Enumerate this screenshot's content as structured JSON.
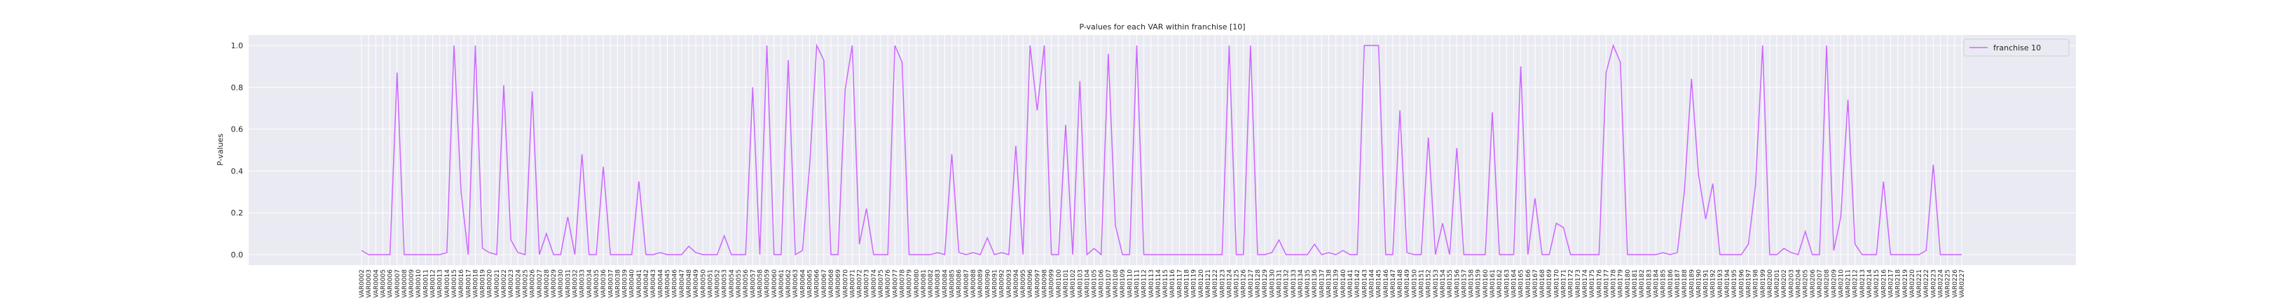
{
  "chart_data": {
    "type": "line",
    "title": "P-values for each VAR within franchise [10]",
    "y_label": "P-values",
    "categories": [
      "VAR0002",
      "VAR0003",
      "VAR0004",
      "VAR0005",
      "VAR0006",
      "VAR0007",
      "VAR0008",
      "VAR0009",
      "VAR0010",
      "VAR0011",
      "VAR0012",
      "VAR0013",
      "VAR0014",
      "VAR0015",
      "VAR0016",
      "VAR0017",
      "VAR0018",
      "VAR0019",
      "VAR0020",
      "VAR0021",
      "VAR0022",
      "VAR0023",
      "VAR0024",
      "VAR0025",
      "VAR0026",
      "VAR0027",
      "VAR0028",
      "VAR0029",
      "VAR0030",
      "VAR0031",
      "VAR0032",
      "VAR0033",
      "VAR0034",
      "VAR0035",
      "VAR0036",
      "VAR0037",
      "VAR0038",
      "VAR0039",
      "VAR0040",
      "VAR0041",
      "VAR0042",
      "VAR0043",
      "VAR0044",
      "VAR0045",
      "VAR0046",
      "VAR0047",
      "VAR0048",
      "VAR0049",
      "VAR0050",
      "VAR0051",
      "VAR0052",
      "VAR0053",
      "VAR0054",
      "VAR0055",
      "VAR0056",
      "VAR0057",
      "VAR0058",
      "VAR0059",
      "VAR0060",
      "VAR0061",
      "VAR0062",
      "VAR0063",
      "VAR0064",
      "VAR0065",
      "VAR0066",
      "VAR0067",
      "VAR0068",
      "VAR0069",
      "VAR0070",
      "VAR0071",
      "VAR0072",
      "VAR0073",
      "VAR0074",
      "VAR0075",
      "VAR0076",
      "VAR0077",
      "VAR0078",
      "VAR0079",
      "VAR0080",
      "VAR0081",
      "VAR0082",
      "VAR0083",
      "VAR0084",
      "VAR0085",
      "VAR0086",
      "VAR0087",
      "VAR0088",
      "VAR0089",
      "VAR0090",
      "VAR0091",
      "VAR0092",
      "VAR0093",
      "VAR0094",
      "VAR0095",
      "VAR0096",
      "VAR0097",
      "VAR0098",
      "VAR0099",
      "VAR0100",
      "VAR0101",
      "VAR0102",
      "VAR0103",
      "VAR0104",
      "VAR0105",
      "VAR0106",
      "VAR0107",
      "VAR0108",
      "VAR0109",
      "VAR0110",
      "VAR0111",
      "VAR0112",
      "VAR0113",
      "VAR0114",
      "VAR0115",
      "VAR0116",
      "VAR0117",
      "VAR0118",
      "VAR0119",
      "VAR0120",
      "VAR0121",
      "VAR0122",
      "VAR0123",
      "VAR0124",
      "VAR0125",
      "VAR0126",
      "VAR0127",
      "VAR0128",
      "VAR0129",
      "VAR0130",
      "VAR0131",
      "VAR0132",
      "VAR0133",
      "VAR0134",
      "VAR0135",
      "VAR0136",
      "VAR0137",
      "VAR0138",
      "VAR0139",
      "VAR0140",
      "VAR0141",
      "VAR0142",
      "VAR0143",
      "VAR0144",
      "VAR0145",
      "VAR0146",
      "VAR0147",
      "VAR0148",
      "VAR0149",
      "VAR0150",
      "VAR0151",
      "VAR0152",
      "VAR0153",
      "VAR0154",
      "VAR0155",
      "VAR0156",
      "VAR0157",
      "VAR0158",
      "VAR0159",
      "VAR0160",
      "VAR0161",
      "VAR0162",
      "VAR0163",
      "VAR0164",
      "VAR0165",
      "VAR0166",
      "VAR0167",
      "VAR0168",
      "VAR0169",
      "VAR0170",
      "VAR0171",
      "VAR0172",
      "VAR0173",
      "VAR0174",
      "VAR0175",
      "VAR0176",
      "VAR0177",
      "VAR0178",
      "VAR0179",
      "VAR0180",
      "VAR0181",
      "VAR0182",
      "VAR0183",
      "VAR0184",
      "VAR0185",
      "VAR0186",
      "VAR0187",
      "VAR0188",
      "VAR0189",
      "VAR0190",
      "VAR0191",
      "VAR0192",
      "VAR0193",
      "VAR0194",
      "VAR0195",
      "VAR0196",
      "VAR0197",
      "VAR0198",
      "VAR0199",
      "VAR0200",
      "VAR0201",
      "VAR0202",
      "VAR0203",
      "VAR0204",
      "VAR0205",
      "VAR0206",
      "VAR0207",
      "VAR0208",
      "VAR0209",
      "VAR0210",
      "VAR0211",
      "VAR0212",
      "VAR0213",
      "VAR0214",
      "VAR0215",
      "VAR0216",
      "VAR0217",
      "VAR0218",
      "VAR0219",
      "VAR0220",
      "VAR0221",
      "VAR0222",
      "VAR0223",
      "VAR0224",
      "VAR0225",
      "VAR0226",
      "VAR0227"
    ],
    "series": [
      {
        "name": "franchise 10",
        "color": "#cc66ff",
        "values": [
          0.02,
          0.0,
          0.0,
          0.0,
          0.0,
          0.87,
          0.0,
          0.0,
          0.0,
          0.0,
          0.0,
          0.0,
          0.01,
          1.0,
          0.3,
          0.0,
          1.0,
          0.03,
          0.01,
          0.0,
          0.81,
          0.07,
          0.01,
          0.0,
          0.78,
          0.0,
          0.1,
          0.0,
          0.0,
          0.18,
          0.0,
          0.48,
          0.0,
          0.0,
          0.42,
          0.0,
          0.0,
          0.0,
          0.0,
          0.35,
          0.0,
          0.0,
          0.01,
          0.0,
          0.0,
          0.0,
          0.04,
          0.01,
          0.0,
          0.0,
          0.0,
          0.09,
          0.0,
          0.0,
          0.0,
          0.8,
          0.0,
          1.0,
          0.0,
          0.0,
          0.93,
          0.0,
          0.02,
          0.42,
          1.0,
          0.93,
          0.0,
          0.0,
          0.79,
          1.0,
          0.05,
          0.22,
          0.0,
          0.0,
          0.0,
          1.0,
          0.92,
          0.0,
          0.0,
          0.0,
          0.0,
          0.01,
          0.0,
          0.48,
          0.01,
          0.0,
          0.01,
          0.0,
          0.08,
          0.0,
          0.01,
          0.0,
          0.52,
          0.0,
          1.0,
          0.69,
          1.0,
          0.0,
          0.0,
          0.62,
          0.0,
          0.83,
          0.0,
          0.03,
          0.0,
          0.96,
          0.14,
          0.0,
          0.0,
          1.0,
          0.0,
          0.0,
          0.0,
          0.0,
          0.0,
          0.0,
          0.0,
          0.0,
          0.0,
          0.0,
          0.0,
          0.0,
          1.0,
          0.0,
          0.0,
          1.0,
          0.0,
          0.0,
          0.01,
          0.07,
          0.0,
          0.0,
          0.0,
          0.0,
          0.05,
          0.0,
          0.01,
          0.0,
          0.02,
          0.0,
          0.0,
          1.0,
          1.0,
          1.0,
          0.0,
          0.0,
          0.69,
          0.01,
          0.0,
          0.0,
          0.56,
          0.0,
          0.15,
          0.0,
          0.51,
          0.0,
          0.0,
          0.0,
          0.0,
          0.68,
          0.0,
          0.0,
          0.0,
          0.9,
          0.0,
          0.27,
          0.0,
          0.0,
          0.15,
          0.13,
          0.0,
          0.0,
          0.0,
          0.0,
          0.0,
          0.87,
          1.0,
          0.92,
          0.0,
          0.0,
          0.0,
          0.0,
          0.0,
          0.01,
          0.0,
          0.01,
          0.3,
          0.84,
          0.38,
          0.17,
          0.34,
          0.0,
          0.0,
          0.0,
          0.0,
          0.05,
          0.33,
          1.0,
          0.0,
          0.0,
          0.03,
          0.01,
          0.0,
          0.11,
          0.0,
          0.0,
          1.0,
          0.02,
          0.18,
          0.74,
          0.05,
          0.0,
          0.0,
          0.0,
          0.35,
          0.0,
          0.0,
          0.0,
          0.0,
          0.0,
          0.02,
          0.43,
          0.0,
          0.0,
          0.0,
          0.0
        ]
      }
    ],
    "ylim": [
      -0.05,
      1.05
    ],
    "yticks": [
      {
        "value": 0,
        "label": "0.0"
      },
      0.2,
      0.4,
      0.6,
      0.8,
      {
        "value": 1,
        "label": "1.0"
      }
    ],
    "grid": true,
    "legend": "upper right"
  }
}
